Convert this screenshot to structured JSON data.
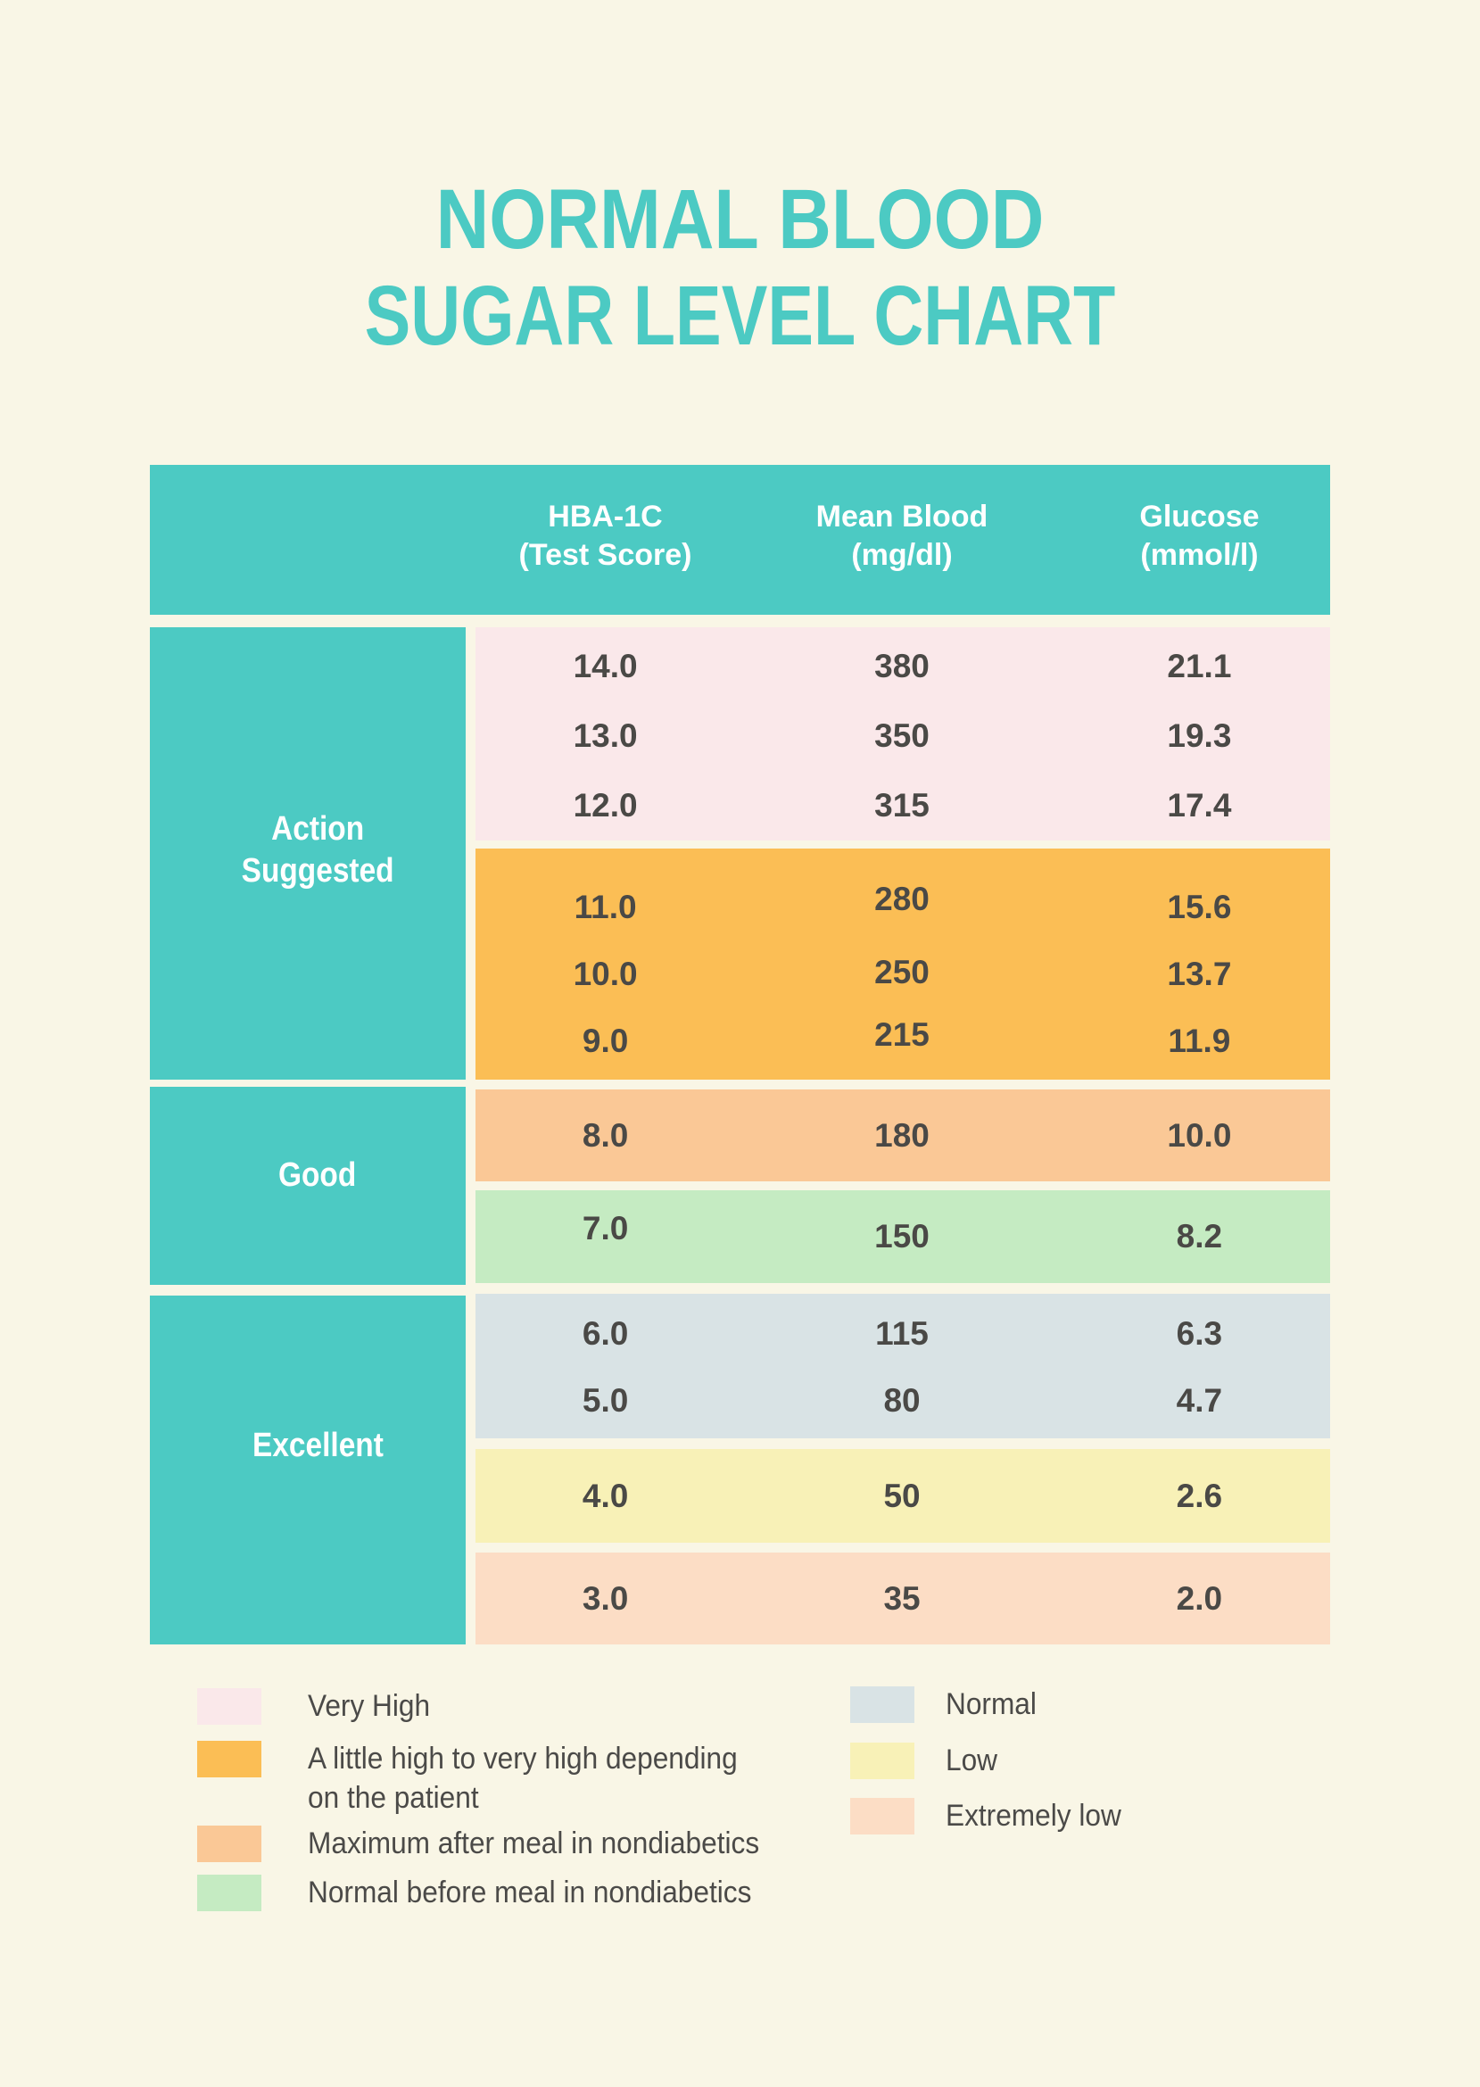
{
  "title": {
    "line1": "NORMAL BLOOD",
    "line2": "SUGAR LEVEL CHART"
  },
  "colors": {
    "background": "#F9F6E6",
    "teal": "#4CCAC3",
    "title_text": "#4CCAC3",
    "header_text": "#FFFFFF",
    "value_text": "#4A4946",
    "legend_text": "#4B4A48",
    "very_high": "#FAE8EA",
    "little_high": "#FBBE55",
    "max_after_meal": "#FAC896",
    "normal_before_meal": "#C5EBC2",
    "normal": "#D9E3E5",
    "low": "#F8F1B7",
    "extremely_low": "#FCDDC5"
  },
  "table": {
    "columns": [
      {
        "line1": "HBA-1C",
        "line2": "(Test Score)"
      },
      {
        "line1": "Mean Blood",
        "line2": "(mg/dl)"
      },
      {
        "line1": "Glucose",
        "line2": "(mmol/l)"
      }
    ],
    "categories": [
      {
        "line1": "Action",
        "line2": "Suggested"
      },
      {
        "line1": "Good"
      },
      {
        "line1": "Excellent"
      }
    ],
    "blocks": [
      {
        "name": "very-high",
        "color": "#FAE8EA",
        "rows": [
          [
            "14.0",
            "380",
            "21.1"
          ],
          [
            "13.0",
            "350",
            "19.3"
          ],
          [
            "12.0",
            "315",
            "17.4"
          ]
        ]
      },
      {
        "name": "little-high",
        "color": "#FBBE55",
        "rows": [
          [
            "11.0",
            "280",
            "15.6"
          ],
          [
            "10.0",
            "250",
            "13.7"
          ],
          [
            "9.0",
            "215",
            "11.9"
          ]
        ]
      },
      {
        "name": "max-after-meal",
        "color": "#FAC896",
        "rows": [
          [
            "8.0",
            "180",
            "10.0"
          ]
        ]
      },
      {
        "name": "normal-before-meal",
        "color": "#C5EBC2",
        "rows": [
          [
            "7.0",
            "150",
            "8.2"
          ]
        ]
      },
      {
        "name": "normal",
        "color": "#D9E3E5",
        "rows": [
          [
            "6.0",
            "115",
            "6.3"
          ],
          [
            "5.0",
            "80",
            "4.7"
          ]
        ]
      },
      {
        "name": "low",
        "color": "#F8F1B7",
        "rows": [
          [
            "4.0",
            "50",
            "2.6"
          ]
        ]
      },
      {
        "name": "extremely-low",
        "color": "#FCDDC5",
        "rows": [
          [
            "3.0",
            "35",
            "2.0"
          ]
        ]
      }
    ]
  },
  "legend": {
    "left": [
      {
        "color": "#FAE8EA",
        "label": "Very High"
      },
      {
        "color": "#FBBE55",
        "label": "A little high to very high depending on the patient"
      },
      {
        "color": "#FAC896",
        "label": "Maximum after meal in nondiabetics"
      },
      {
        "color": "#C5EBC2",
        "label": "Normal before meal in nondiabetics"
      }
    ],
    "right": [
      {
        "color": "#D9E3E5",
        "label": "Normal"
      },
      {
        "color": "#F8F1B7",
        "label": "Low"
      },
      {
        "color": "#FCDDC5",
        "label": "Extremely low"
      }
    ]
  },
  "chart_data": {
    "type": "table",
    "title": "NORMAL BLOOD SUGAR LEVEL CHART",
    "columns": [
      "HBA-1C (Test Score)",
      "Mean Blood (mg/dl)",
      "Glucose (mmol/l)"
    ],
    "rows": [
      {
        "category": "Action Suggested",
        "status": "Very High",
        "hba1c": 14.0,
        "mean_blood": 380,
        "glucose": 21.1
      },
      {
        "category": "Action Suggested",
        "status": "Very High",
        "hba1c": 13.0,
        "mean_blood": 350,
        "glucose": 19.3
      },
      {
        "category": "Action Suggested",
        "status": "Very High",
        "hba1c": 12.0,
        "mean_blood": 315,
        "glucose": 17.4
      },
      {
        "category": "Action Suggested",
        "status": "A little high to very high depending on the patient",
        "hba1c": 11.0,
        "mean_blood": 280,
        "glucose": 15.6
      },
      {
        "category": "Action Suggested",
        "status": "A little high to very high depending on the patient",
        "hba1c": 10.0,
        "mean_blood": 250,
        "glucose": 13.7
      },
      {
        "category": "Action Suggested",
        "status": "A little high to very high depending on the patient",
        "hba1c": 9.0,
        "mean_blood": 215,
        "glucose": 11.9
      },
      {
        "category": "Good",
        "status": "Maximum after meal in nondiabetics",
        "hba1c": 8.0,
        "mean_blood": 180,
        "glucose": 10.0
      },
      {
        "category": "Good",
        "status": "Normal before meal in nondiabetics",
        "hba1c": 7.0,
        "mean_blood": 150,
        "glucose": 8.2
      },
      {
        "category": "Excellent",
        "status": "Normal",
        "hba1c": 6.0,
        "mean_blood": 115,
        "glucose": 6.3
      },
      {
        "category": "Excellent",
        "status": "Normal",
        "hba1c": 5.0,
        "mean_blood": 80,
        "glucose": 4.7
      },
      {
        "category": "Excellent",
        "status": "Low",
        "hba1c": 4.0,
        "mean_blood": 50,
        "glucose": 2.6
      },
      {
        "category": "Excellent",
        "status": "Extremely low",
        "hba1c": 3.0,
        "mean_blood": 35,
        "glucose": 2.0
      }
    ],
    "legend": [
      {
        "color": "#FAE8EA",
        "label": "Very High"
      },
      {
        "color": "#FBBE55",
        "label": "A little high to very high depending on the patient"
      },
      {
        "color": "#FAC896",
        "label": "Maximum after meal in nondiabetics"
      },
      {
        "color": "#C5EBC2",
        "label": "Normal before meal in nondiabetics"
      },
      {
        "color": "#D9E3E5",
        "label": "Normal"
      },
      {
        "color": "#F8F1B7",
        "label": "Low"
      },
      {
        "color": "#FCDDC5",
        "label": "Extremely low"
      }
    ]
  }
}
